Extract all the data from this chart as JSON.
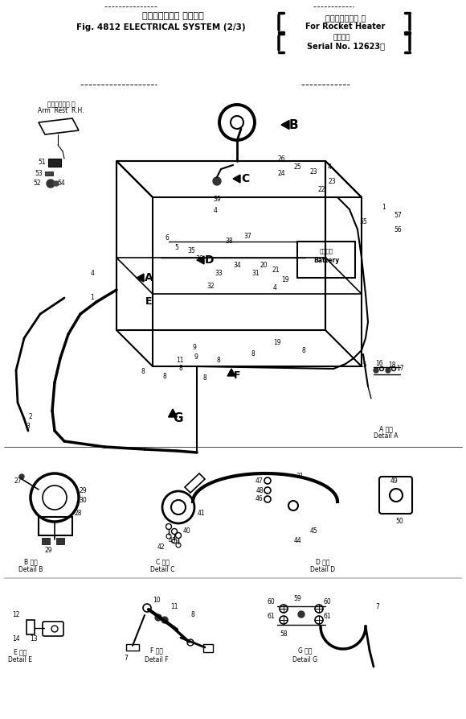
{
  "bg_color": "#ffffff",
  "line_color": "#000000",
  "fig_width": 5.8,
  "fig_height": 8.93,
  "dpi": 100,
  "title1_jp": "エレクトリカル システム",
  "title1_en": "Fig. 4812 ELECTRICAL SYSTEM (2/3)",
  "title2_jp": "ロケットヒータ 用",
  "title2_en": "For Rocket Heater",
  "title3_jp": "適用号機",
  "title3_en": "Serial No. 12623～"
}
